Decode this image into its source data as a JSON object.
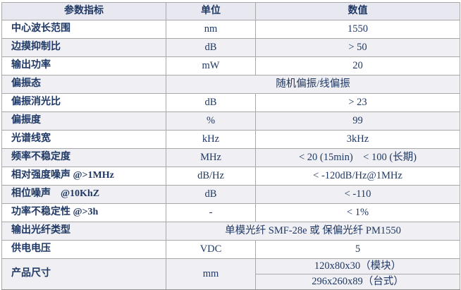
{
  "colors": {
    "text": "#1f3864",
    "header_bg": "#e8e8f1",
    "stripe_bg": "#f0f0f4",
    "border": "#a8a8a8",
    "row_bg": "#ffffff"
  },
  "table": {
    "headers": [
      {
        "label": "参数指标"
      },
      {
        "label": "单位"
      },
      {
        "label": "数值"
      }
    ],
    "rows": [
      {
        "param": "中心波长范围",
        "unit": "nm",
        "value": "1550",
        "shaded": false
      },
      {
        "param": "边摸抑制比",
        "unit": "dB",
        "value": "> 50",
        "shaded": true
      },
      {
        "param": "输出功率",
        "unit": "mW",
        "value": "20",
        "shaded": false
      },
      {
        "param": "偏振态",
        "merged": true,
        "value": "随机偏振/线偏振",
        "shaded": true
      },
      {
        "param": "偏振消光比",
        "unit": "dB",
        "value": "> 23",
        "shaded": false
      },
      {
        "param": "偏振度",
        "unit": "%",
        "value": "99",
        "shaded": true
      },
      {
        "param": "光谱线宽",
        "unit": "kHz",
        "value": "3kHz",
        "shaded": false
      },
      {
        "param": "频率不稳定度",
        "unit": "MHz",
        "value": "< 20 (15min)　< 100 (长期)",
        "shaded": true
      },
      {
        "param": "相对强度噪声 @>1MHz",
        "unit": "dB/Hz",
        "value": "< -120dB/Hz@1MHz",
        "shaded": false
      },
      {
        "param": "相位噪声　@10KhZ",
        "unit": "dB",
        "value": "< -110",
        "shaded": true
      },
      {
        "param": "功率不稳定性 @>3h",
        "unit": "-",
        "value": "< 1%",
        "shaded": false
      },
      {
        "param": "输出光纤类型",
        "merged": true,
        "value": "单模光纤 SMF-28e 或 保偏光纤 PM1550",
        "shaded": true
      },
      {
        "param": "供电电压",
        "unit": "VDC",
        "value": "5",
        "shaded": false
      },
      {
        "param": "产品尺寸",
        "unit": "mm",
        "values": [
          "120x80x30（模块）",
          "296x260x89（台式）"
        ],
        "shaded": true
      }
    ]
  }
}
